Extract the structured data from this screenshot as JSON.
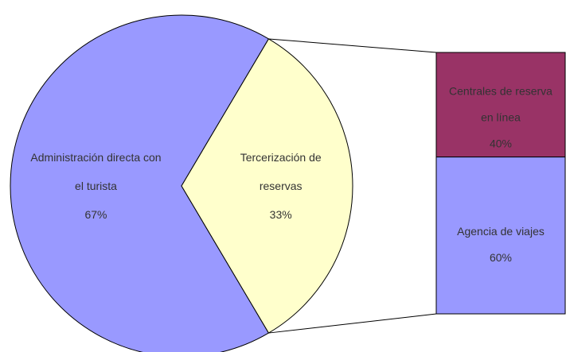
{
  "chart_data": {
    "type": "pie",
    "categories": [
      "Administración directa con el turista",
      "Tercerización de reservas"
    ],
    "values": [
      67,
      33
    ],
    "value_labels": [
      "67%",
      "33%"
    ],
    "colors": [
      "#9999ff",
      "#ffffcc"
    ],
    "breakdown": {
      "type": "bar",
      "categories": [
        "Centrales de reserva en línea",
        "Agencia de viajes"
      ],
      "values": [
        40,
        60
      ],
      "value_labels": [
        "40%",
        "60%"
      ],
      "colors": [
        "#993366",
        "#9999ff"
      ]
    }
  }
}
